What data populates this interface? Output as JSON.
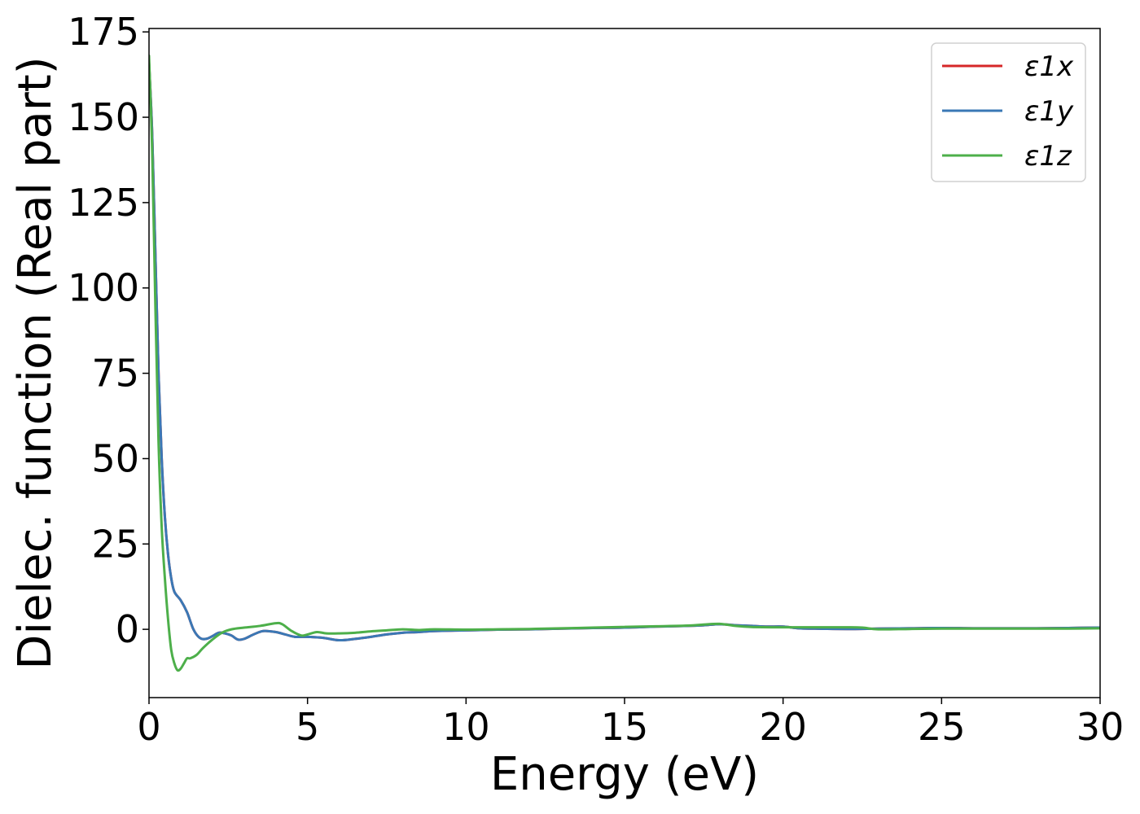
{
  "chart_data": {
    "type": "line",
    "title": "",
    "xlabel": "Energy (eV)",
    "ylabel": "Dielec. function (Real part)",
    "xlim": [
      0,
      30
    ],
    "ylim": [
      -20,
      176
    ],
    "xticks": [
      0,
      5,
      10,
      15,
      20,
      25,
      30
    ],
    "yticks": [
      0,
      25,
      50,
      75,
      100,
      125,
      150,
      175
    ],
    "grid": false,
    "legend_position": "top-right",
    "series": [
      {
        "name": "ε1x",
        "color": "#d62728",
        "x": [
          0,
          0.1,
          0.2,
          0.3,
          0.4,
          0.5,
          0.6,
          0.7,
          0.8,
          1.0,
          1.2,
          1.4,
          1.6,
          1.8,
          2.0,
          2.2,
          2.4,
          2.6,
          2.8,
          3.0,
          3.3,
          3.6,
          4.0,
          4.3,
          4.6,
          5.0,
          5.5,
          6.0,
          6.5,
          7.0,
          7.5,
          8.0,
          8.5,
          9.0,
          10.0,
          11.0,
          12.0,
          13.0,
          14.0,
          15.0,
          16.0,
          17.0,
          17.5,
          18.0,
          18.5,
          19.0,
          19.5,
          20.0,
          20.5,
          21.0,
          22.0,
          23.0,
          24.0,
          25.0,
          26.0,
          27.0,
          28.0,
          29.0,
          30.0
        ],
        "y": [
          166,
          145,
          110,
          75,
          50,
          33,
          22,
          15,
          11,
          8.5,
          5,
          0,
          -2.5,
          -2.8,
          -2,
          -1,
          -1.2,
          -1.8,
          -3,
          -2.8,
          -1.5,
          -0.5,
          -0.8,
          -1.5,
          -2.2,
          -2.2,
          -2.5,
          -3.2,
          -2.8,
          -2.2,
          -1.5,
          -1,
          -0.8,
          -0.5,
          -0.3,
          -0.1,
          0,
          0.2,
          0.4,
          0.5,
          0.8,
          1,
          1.2,
          1.5,
          1.2,
          1,
          0.8,
          0.8,
          0.3,
          0.2,
          0.1,
          0.2,
          0.3,
          0.4,
          0.3,
          0.3,
          0.3,
          0.4,
          0.5
        ]
      },
      {
        "name": "ε1y",
        "color": "#3a78b5",
        "x": [
          0,
          0.1,
          0.2,
          0.3,
          0.4,
          0.5,
          0.6,
          0.7,
          0.8,
          1.0,
          1.2,
          1.4,
          1.6,
          1.8,
          2.0,
          2.2,
          2.4,
          2.6,
          2.8,
          3.0,
          3.3,
          3.6,
          4.0,
          4.3,
          4.6,
          5.0,
          5.5,
          6.0,
          6.5,
          7.0,
          7.5,
          8.0,
          8.5,
          9.0,
          10.0,
          11.0,
          12.0,
          13.0,
          14.0,
          15.0,
          16.0,
          17.0,
          17.5,
          18.0,
          18.5,
          19.0,
          19.5,
          20.0,
          20.5,
          21.0,
          22.0,
          23.0,
          24.0,
          25.0,
          26.0,
          27.0,
          28.0,
          29.0,
          30.0
        ],
        "y": [
          166,
          145,
          110,
          75,
          50,
          33,
          22,
          15,
          11,
          8.5,
          5,
          0,
          -2.5,
          -2.8,
          -2,
          -1,
          -1.2,
          -1.8,
          -3,
          -2.8,
          -1.5,
          -0.5,
          -0.8,
          -1.5,
          -2.2,
          -2.2,
          -2.5,
          -3.2,
          -2.8,
          -2.2,
          -1.5,
          -1,
          -0.8,
          -0.5,
          -0.3,
          -0.1,
          0,
          0.2,
          0.4,
          0.5,
          0.8,
          1,
          1.2,
          1.5,
          1.2,
          1,
          0.8,
          0.8,
          0.3,
          0.2,
          0.1,
          0.2,
          0.3,
          0.4,
          0.3,
          0.3,
          0.3,
          0.4,
          0.5
        ]
      },
      {
        "name": "ε1z",
        "color": "#4daf4a",
        "x": [
          0,
          0.1,
          0.2,
          0.3,
          0.4,
          0.5,
          0.6,
          0.7,
          0.8,
          0.9,
          1.0,
          1.1,
          1.2,
          1.3,
          1.5,
          1.7,
          2.0,
          2.3,
          2.6,
          3.0,
          3.5,
          4.0,
          4.2,
          4.5,
          4.8,
          5.0,
          5.3,
          5.6,
          6.0,
          6.5,
          7.0,
          7.5,
          8.0,
          8.5,
          9.0,
          10.0,
          11.0,
          12.0,
          13.0,
          14.0,
          15.0,
          16.0,
          17.0,
          17.5,
          18.0,
          18.5,
          19.0,
          20.0,
          21.0,
          22.0,
          22.5,
          23.0,
          24.0,
          25.0,
          26.0,
          27.0,
          28.0,
          29.0,
          30.0
        ],
        "y": [
          168,
          140,
          95,
          55,
          30,
          15,
          3,
          -6,
          -10,
          -12,
          -11.5,
          -10,
          -8.5,
          -8.5,
          -7.5,
          -5.5,
          -3,
          -1,
          0,
          0.5,
          1,
          1.8,
          1.5,
          -0.5,
          -1.8,
          -1.5,
          -0.8,
          -1.2,
          -1.2,
          -1,
          -0.6,
          -0.3,
          0,
          -0.2,
          0,
          -0.1,
          0,
          0.1,
          0.3,
          0.5,
          0.7,
          0.9,
          1.1,
          1.4,
          1.6,
          1,
          0.7,
          0.6,
          0.6,
          0.6,
          0.5,
          0,
          0.1,
          0.2,
          0.2,
          0.2,
          0.2,
          0.2,
          0.3
        ]
      }
    ]
  }
}
